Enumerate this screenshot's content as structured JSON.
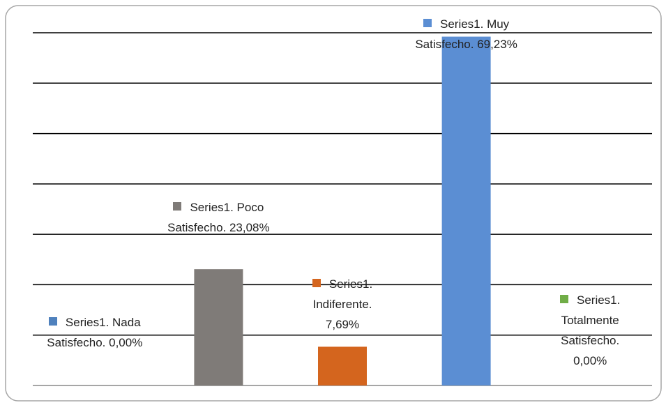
{
  "chart_data": {
    "type": "bar",
    "series_name": "Series1",
    "values": [
      0,
      23.08,
      7.69,
      69.23,
      0
    ],
    "value_labels": [
      "Series1. Nada Satisfecho. 0,00%",
      "Series1. Poco Satisfecho. 23,08%",
      "Series1. Indiferente. 7,69%",
      "Series1. Muy Satisfecho. 69,23%",
      "Series1. Totalmente Satisfecho. 0,00%"
    ],
    "colors": [
      "#4f81bd",
      "#7f7b78",
      "#d4651e",
      "#5b8ed3",
      "#70ad47"
    ],
    "ylim": [
      0,
      70
    ],
    "yticks": [
      0,
      10,
      20,
      30,
      40,
      50,
      60,
      70
    ],
    "grid": true
  }
}
